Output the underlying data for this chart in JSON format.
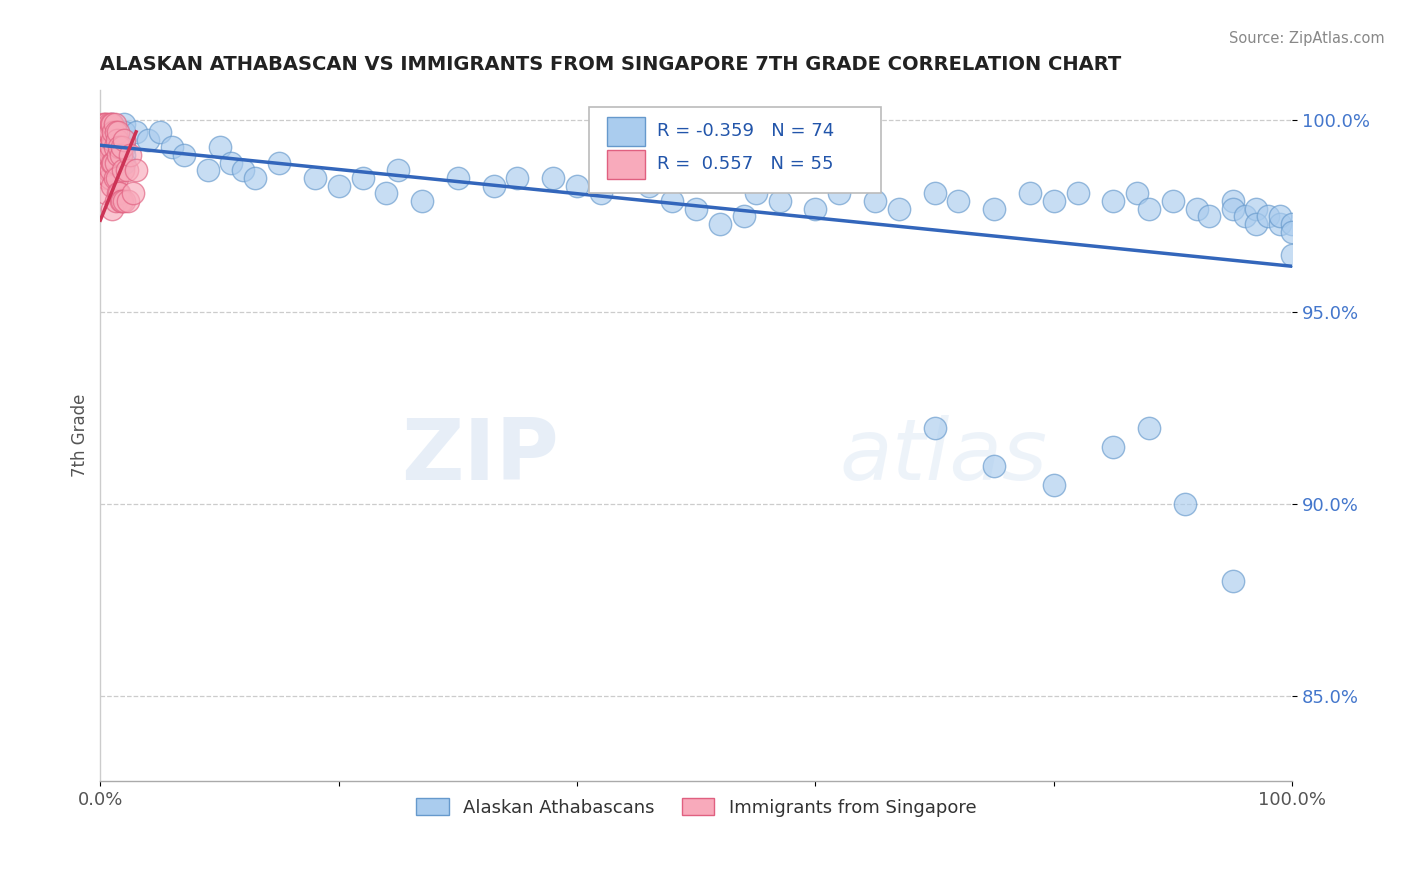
{
  "title": "ALASKAN ATHABASCAN VS IMMIGRANTS FROM SINGAPORE 7TH GRADE CORRELATION CHART",
  "source": "Source: ZipAtlas.com",
  "ylabel": "7th Grade",
  "xlim": [
    0.0,
    1.0
  ],
  "ylim": [
    0.828,
    1.008
  ],
  "yticks": [
    0.85,
    0.9,
    0.95,
    1.0
  ],
  "ytick_labels": [
    "85.0%",
    "90.0%",
    "95.0%",
    "100.0%"
  ],
  "xticks": [
    0.0,
    0.2,
    0.4,
    0.6,
    0.8,
    1.0
  ],
  "xtick_labels": [
    "0.0%",
    "",
    "",
    "",
    "",
    "100.0%"
  ],
  "blue_R": -0.359,
  "blue_N": 74,
  "pink_R": 0.557,
  "pink_N": 55,
  "blue_label": "Alaskan Athabascans",
  "pink_label": "Immigrants from Singapore",
  "blue_color": "#aaccee",
  "blue_edge": "#6699cc",
  "pink_color": "#f8aabb",
  "pink_edge": "#e06080",
  "trendline_blue_color": "#3366bb",
  "trendline_pink_color": "#cc3355",
  "blue_scatter_x": [
    0.01,
    0.01,
    0.01,
    0.02,
    0.02,
    0.02,
    0.02,
    0.02,
    0.02,
    0.03,
    0.04,
    0.05,
    0.06,
    0.07,
    0.09,
    0.1,
    0.11,
    0.12,
    0.13,
    0.15,
    0.18,
    0.2,
    0.22,
    0.24,
    0.25,
    0.27,
    0.3,
    0.33,
    0.35,
    0.38,
    0.4,
    0.42,
    0.44,
    0.46,
    0.48,
    0.5,
    0.52,
    0.54,
    0.55,
    0.57,
    0.6,
    0.62,
    0.65,
    0.67,
    0.7,
    0.72,
    0.75,
    0.78,
    0.8,
    0.82,
    0.85,
    0.87,
    0.88,
    0.9,
    0.92,
    0.93,
    0.95,
    0.95,
    0.96,
    0.97,
    0.97,
    0.98,
    0.99,
    0.99,
    1.0,
    1.0,
    1.0,
    0.7,
    0.75,
    0.8,
    0.85,
    0.88,
    0.91,
    0.95
  ],
  "blue_scatter_y": [
    0.999,
    0.997,
    0.995,
    0.999,
    0.997,
    0.995,
    0.993,
    0.991,
    0.989,
    0.997,
    0.995,
    0.997,
    0.993,
    0.991,
    0.987,
    0.993,
    0.989,
    0.987,
    0.985,
    0.989,
    0.985,
    0.983,
    0.985,
    0.981,
    0.987,
    0.979,
    0.985,
    0.983,
    0.985,
    0.985,
    0.983,
    0.981,
    0.985,
    0.983,
    0.979,
    0.977,
    0.973,
    0.975,
    0.981,
    0.979,
    0.977,
    0.981,
    0.979,
    0.977,
    0.981,
    0.979,
    0.977,
    0.981,
    0.979,
    0.981,
    0.979,
    0.981,
    0.977,
    0.979,
    0.977,
    0.975,
    0.979,
    0.977,
    0.975,
    0.977,
    0.973,
    0.975,
    0.973,
    0.975,
    0.973,
    0.971,
    0.965,
    0.92,
    0.91,
    0.905,
    0.915,
    0.92,
    0.9,
    0.88
  ],
  "pink_scatter_x": [
    0.002,
    0.003,
    0.003,
    0.004,
    0.004,
    0.005,
    0.005,
    0.005,
    0.005,
    0.005,
    0.005,
    0.006,
    0.006,
    0.006,
    0.007,
    0.007,
    0.007,
    0.008,
    0.008,
    0.008,
    0.009,
    0.009,
    0.009,
    0.01,
    0.01,
    0.01,
    0.01,
    0.01,
    0.011,
    0.011,
    0.012,
    0.012,
    0.012,
    0.013,
    0.013,
    0.013,
    0.014,
    0.014,
    0.015,
    0.015,
    0.015,
    0.016,
    0.016,
    0.017,
    0.017,
    0.018,
    0.018,
    0.019,
    0.02,
    0.02,
    0.022,
    0.023,
    0.025,
    0.027,
    0.03
  ],
  "pink_scatter_y": [
    0.999,
    0.997,
    0.993,
    0.999,
    0.995,
    0.999,
    0.997,
    0.993,
    0.989,
    0.985,
    0.981,
    0.997,
    0.993,
    0.987,
    0.999,
    0.993,
    0.987,
    0.997,
    0.991,
    0.985,
    0.999,
    0.993,
    0.987,
    0.999,
    0.995,
    0.989,
    0.983,
    0.977,
    0.997,
    0.989,
    0.999,
    0.993,
    0.985,
    0.997,
    0.989,
    0.979,
    0.995,
    0.985,
    0.997,
    0.991,
    0.981,
    0.993,
    0.981,
    0.991,
    0.979,
    0.993,
    0.979,
    0.987,
    0.995,
    0.979,
    0.987,
    0.979,
    0.991,
    0.981,
    0.987
  ],
  "blue_trend_x": [
    0.0,
    1.0
  ],
  "blue_trend_y": [
    0.9935,
    0.962
  ],
  "pink_trend_x": [
    0.0,
    0.03
  ],
  "pink_trend_y": [
    0.974,
    0.997
  ],
  "watermark_zip": "ZIP",
  "watermark_atlas": "atlas",
  "figsize": [
    14.06,
    8.92
  ],
  "dpi": 100
}
